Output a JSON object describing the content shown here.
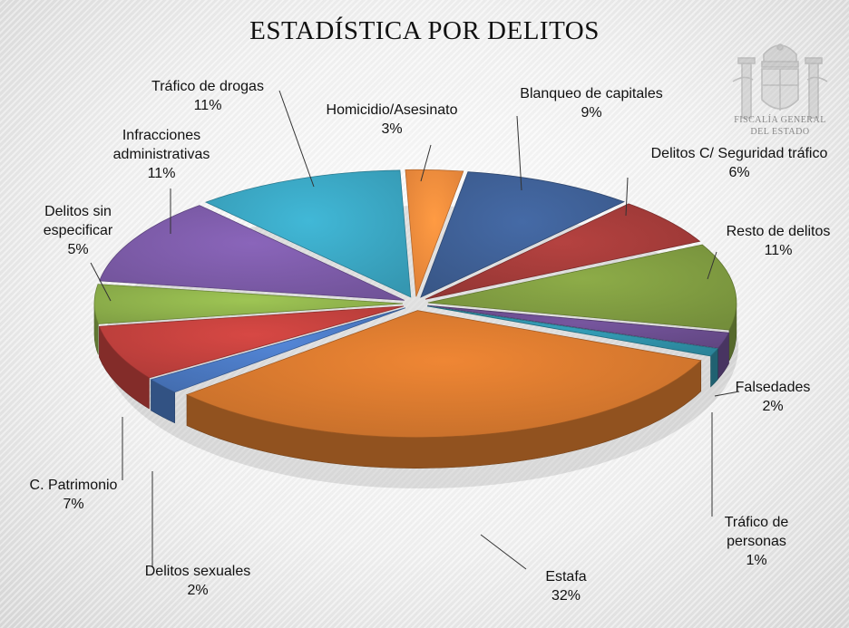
{
  "chart_data": {
    "type": "pie",
    "title": "ESTADÍSTICA POR DELITOS",
    "slices": [
      {
        "name": "Homicidio/Asesinato",
        "value": 3,
        "pct_label": "3%",
        "color": "#F08A3C"
      },
      {
        "name": "Blanqueo de capitales",
        "value": 9,
        "pct_label": "9%",
        "color": "#3E5F94"
      },
      {
        "name": "Delitos C/ Seguridad tráfico",
        "value": 6,
        "pct_label": "6%",
        "color": "#A23B39"
      },
      {
        "name": "Resto de delitos",
        "value": 11,
        "pct_label": "11%",
        "color": "#7E9A40"
      },
      {
        "name": "Falsedades",
        "value": 2,
        "pct_label": "2%",
        "color": "#6A4D8E"
      },
      {
        "name": "Tráfico de personas",
        "value": 1,
        "pct_label": "1%",
        "color": "#2F8FA6"
      },
      {
        "name": "Estafa",
        "value": 32,
        "pct_label": "32%",
        "color": "#D5782E"
      },
      {
        "name": "Delitos sexuales",
        "value": 2,
        "pct_label": "2%",
        "color": "#4A78C0"
      },
      {
        "name": "C. Patrimonio",
        "value": 7,
        "pct_label": "7%",
        "color": "#C0403D"
      },
      {
        "name": "Delitos sin especificar",
        "value": 5,
        "pct_label": "5%",
        "color": "#8DB04B"
      },
      {
        "name": "Infracciones administrativas",
        "value": 11,
        "pct_label": "11%",
        "color": "#7B5AA6"
      },
      {
        "name": "Tráfico de drogas",
        "value": 11,
        "pct_label": "11%",
        "color": "#3AA4C0"
      }
    ],
    "labels_display": [
      "Homicidio/Asesinato",
      "Blanqueo de capitales",
      "Delitos C/ Seguridad tráfico",
      "Resto de delitos",
      "Falsedades",
      "Tráfico de\npersonas",
      "Estafa",
      "Delitos sexuales",
      "C. Patrimonio",
      "Delitos sin\nespecificar",
      "Infracciones\nadministrativas",
      "Tráfico de drogas"
    ],
    "style": "3d-exploded-pie"
  },
  "logo": {
    "line1": "FISCALÍA GENERAL",
    "line2": "DEL ESTADO"
  }
}
